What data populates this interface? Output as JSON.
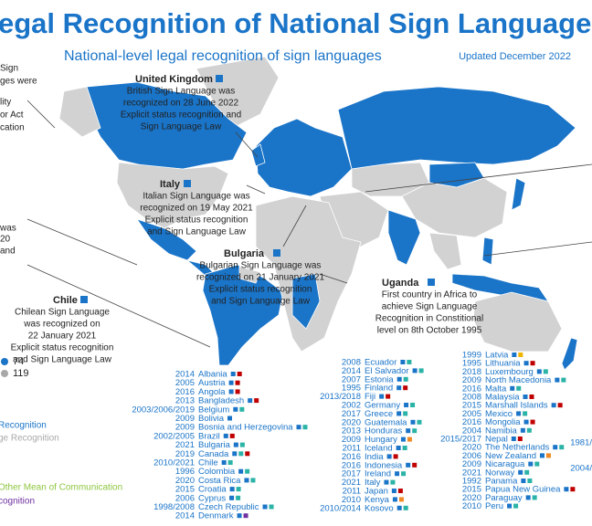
{
  "header": {
    "title": "egal Recognition of National Sign Languages",
    "subtitle": "National-level legal recognition of sign languages",
    "updated": "Updated December 2022"
  },
  "fragments": [
    "Sign",
    "ges were",
    "lity",
    "or Act",
    "cation",
    "was",
    "20",
    "and"
  ],
  "callouts": [
    {
      "title": "United Kingdom",
      "lines": [
        "British Sign Language was",
        "recognized on 28 June 2022",
        "Explicit status recognition and",
        "Sign Language Law"
      ]
    },
    {
      "title": "Italy",
      "lines": [
        "Italian Sign Language was",
        "recognized on 19 May 2021",
        "Explicit status recognition",
        "and Sign Language Law"
      ]
    },
    {
      "title": "Bulgaria",
      "lines": [
        "Bulgarian Sign Language was",
        "recognized on 21 January 2021",
        "Explicit status recognition",
        "and Sign Language Law"
      ]
    },
    {
      "title": "Chile",
      "lines": [
        "Chilean Sign Language",
        "was recognized on",
        "22 January 2021",
        "Explicit status recognition",
        "and Sign Language Law"
      ]
    },
    {
      "title": "Uganda",
      "lines": [
        "First country in Africa to",
        "achieve Sign Language",
        "Recognition in Constitional",
        "level on 8th October 1995"
      ]
    }
  ],
  "legend": {
    "counts": [
      "74",
      "119"
    ],
    "items": [
      "Recognition",
      "ge Recognition",
      "Other Mean of Communication",
      "cognition"
    ],
    "colors": [
      "#1a74c8",
      "#a8a8a8",
      "#8dc63f",
      "#7030a0"
    ]
  },
  "columns": [
    [
      {
        "year": "2014",
        "country": "Albania",
        "colors": [
          "#1a74c8",
          "#c00000"
        ]
      },
      {
        "year": "2005",
        "country": "Austria",
        "colors": [
          "#1a74c8",
          "#c00000"
        ]
      },
      {
        "year": "2016",
        "country": "Angola",
        "colors": [
          "#1a74c8",
          "#c00000"
        ]
      },
      {
        "year": "2013",
        "country": "Bangladesh",
        "colors": [
          "#1a74c8",
          "#c00000"
        ]
      },
      {
        "year": "2003/2006/2019",
        "country": "Belgium",
        "colors": [
          "#1a74c8",
          "#2ab3a6"
        ]
      },
      {
        "year": "2009",
        "country": "Bolivia",
        "colors": [
          "#1a74c8"
        ]
      },
      {
        "year": "2009",
        "country": "Bosnia and Herzegovina",
        "colors": [
          "#1a74c8",
          "#2ab3a6"
        ]
      },
      {
        "year": "2002/2005",
        "country": "Brazil",
        "colors": [
          "#1a74c8",
          "#c00000"
        ]
      },
      {
        "year": "2021",
        "country": "Bulgaria",
        "colors": [
          "#1a74c8",
          "#2ab3a6"
        ]
      },
      {
        "year": "2019",
        "country": "Canada",
        "colors": [
          "#1a74c8",
          "#2ab3a6",
          "#c00000"
        ]
      },
      {
        "year": "2010/2021",
        "country": "Chile",
        "colors": [
          "#1a74c8",
          "#2ab3a6"
        ]
      },
      {
        "year": "1996",
        "country": "Colombia",
        "colors": [
          "#1a74c8",
          "#2ab3a6"
        ]
      },
      {
        "year": "2020",
        "country": "Costa Rica",
        "colors": [
          "#1a74c8",
          "#2ab3a6"
        ]
      },
      {
        "year": "2015",
        "country": "Croatia",
        "colors": [
          "#1a74c8",
          "#2ab3a6"
        ]
      },
      {
        "year": "2006",
        "country": "Cyprus",
        "colors": [
          "#1a74c8",
          "#2ab3a6"
        ]
      },
      {
        "year": "1998/2008",
        "country": "Czech Republic",
        "colors": [
          "#1a74c8",
          "#2ab3a6"
        ]
      },
      {
        "year": "2014",
        "country": "Denmark",
        "colors": [
          "#1a74c8",
          "#7030a0"
        ]
      }
    ],
    [
      {
        "year": "2008",
        "country": "Ecuador",
        "colors": [
          "#1a74c8",
          "#2ab3a6"
        ]
      },
      {
        "year": "2014",
        "country": "El Salvador",
        "colors": [
          "#1a74c8",
          "#2ab3a6"
        ]
      },
      {
        "year": "2007",
        "country": "Estonia",
        "colors": [
          "#1a74c8",
          "#2ab3a6"
        ]
      },
      {
        "year": "1995",
        "country": "Finland",
        "colors": [
          "#1a74c8",
          "#c00000"
        ]
      },
      {
        "year": "2013/2018",
        "country": "Fiji",
        "colors": [
          "#1a74c8",
          "#c00000"
        ]
      },
      {
        "year": "2002",
        "country": "Germany",
        "colors": [
          "#1a74c8",
          "#2ab3a6"
        ]
      },
      {
        "year": "2017",
        "country": "Greece",
        "colors": [
          "#1a74c8",
          "#2ab3a6"
        ]
      },
      {
        "year": "2020",
        "country": "Guatemala",
        "colors": [
          "#1a74c8",
          "#2ab3a6"
        ]
      },
      {
        "year": "2013",
        "country": "Honduras",
        "colors": [
          "#1a74c8",
          "#2ab3a6"
        ]
      },
      {
        "year": "2009",
        "country": "Hungary",
        "colors": [
          "#1a74c8",
          "#f08a24"
        ]
      },
      {
        "year": "2011",
        "country": "Iceland",
        "colors": [
          "#1a74c8",
          "#2ab3a6"
        ]
      },
      {
        "year": "2016",
        "country": "India",
        "colors": [
          "#1a74c8",
          "#c00000"
        ]
      },
      {
        "year": "2016",
        "country": "Indonesia",
        "colors": [
          "#1a74c8",
          "#c00000"
        ]
      },
      {
        "year": "2017",
        "country": "Ireland",
        "colors": [
          "#1a74c8",
          "#2ab3a6"
        ]
      },
      {
        "year": "2021",
        "country": "Italy",
        "colors": [
          "#1a74c8",
          "#2ab3a6"
        ]
      },
      {
        "year": "2011",
        "country": "Japan",
        "colors": [
          "#1a74c8",
          "#c00000"
        ]
      },
      {
        "year": "2010",
        "country": "Kenya",
        "colors": [
          "#1a74c8",
          "#f08a24"
        ]
      },
      {
        "year": "2010/2014",
        "country": "Kosovo",
        "colors": [
          "#1a74c8",
          "#2ab3a6"
        ]
      }
    ],
    [
      {
        "year": "1999",
        "country": "Latvia",
        "colors": [
          "#1a74c8",
          "#f0b400"
        ]
      },
      {
        "year": "1995",
        "country": "Lithuania",
        "colors": [
          "#1a74c8",
          "#c00000"
        ]
      },
      {
        "year": "2018",
        "country": "Luxembourg",
        "colors": [
          "#1a74c8",
          "#2ab3a6"
        ]
      },
      {
        "year": "2009",
        "country": "North Macedonia",
        "colors": [
          "#1a74c8",
          "#2ab3a6"
        ]
      },
      {
        "year": "2016",
        "country": "Malta",
        "colors": [
          "#1a74c8",
          "#2ab3a6"
        ]
      },
      {
        "year": "2008",
        "country": "Malaysia",
        "colors": [
          "#1a74c8",
          "#c00000"
        ]
      },
      {
        "year": "2015",
        "country": "Marshall Islands",
        "colors": [
          "#1a74c8",
          "#c00000"
        ]
      },
      {
        "year": "2005",
        "country": "Mexico",
        "colors": [
          "#1a74c8",
          "#2ab3a6"
        ]
      },
      {
        "year": "2016",
        "country": "Mongolia",
        "colors": [
          "#1a74c8",
          "#c00000"
        ]
      },
      {
        "year": "2004",
        "country": "Namibia",
        "colors": [
          "#1a74c8",
          "#2ab3a6"
        ]
      },
      {
        "year": "2015/2017",
        "country": "Nepal",
        "colors": [
          "#1a74c8",
          "#c00000"
        ]
      },
      {
        "year": "2020",
        "country": "The Netherlands",
        "colors": [
          "#1a74c8",
          "#2ab3a6"
        ]
      },
      {
        "year": "2006",
        "country": "New Zealand",
        "colors": [
          "#1a74c8",
          "#f08a24"
        ]
      },
      {
        "year": "2009",
        "country": "Nicaragua",
        "colors": [
          "#1a74c8",
          "#2ab3a6"
        ]
      },
      {
        "year": "2021",
        "country": "Norway",
        "colors": [
          "#1a74c8",
          "#2ab3a6"
        ]
      },
      {
        "year": "1992",
        "country": "Panama",
        "colors": [
          "#1a74c8",
          "#2ab3a6"
        ]
      },
      {
        "year": "2015",
        "country": "Papua New Guinea",
        "colors": [
          "#1a74c8",
          "#c00000"
        ]
      },
      {
        "year": "2020",
        "country": "Paraguay",
        "colors": [
          "#1a74c8",
          "#2ab3a6"
        ]
      },
      {
        "year": "2010",
        "country": "Peru",
        "colors": [
          "#1a74c8",
          "#2ab3a6"
        ]
      }
    ]
  ],
  "edge_years": [
    "1981/",
    "2004/"
  ]
}
